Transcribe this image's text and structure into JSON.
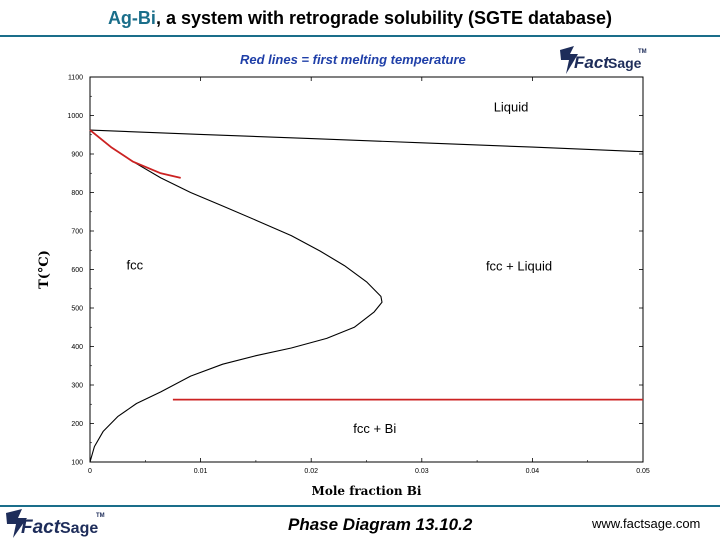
{
  "header": {
    "title_highlight": "Ag-Bi",
    "title_rest": ", a system with retrograde solubility (SGTE database)"
  },
  "subtitle": "Red lines = first melting temperature",
  "logo": {
    "text_a": "Fact",
    "text_b": "Sage",
    "tm": "TM"
  },
  "footer": {
    "center": "Phase Diagram  13.10.2",
    "right": "www.factsage.com"
  },
  "colors": {
    "accent": "#1a6e8a",
    "subtitle": "#1f3fa8",
    "first_melting_line": "#cc2222",
    "phase_line": "#000000"
  },
  "chart_data": {
    "type": "line",
    "xlabel": "Mole fraction Bi",
    "ylabel": "T(°C)",
    "xlim": [
      0,
      0.05
    ],
    "ylim": [
      100,
      1100
    ],
    "x_ticks": [
      0,
      0.01,
      0.02,
      0.03,
      0.04,
      0.05
    ],
    "x_tick_labels": [
      "0",
      "0.01",
      "0.02",
      "0.03",
      "0.04",
      "0.05"
    ],
    "y_ticks": [
      100,
      200,
      300,
      400,
      500,
      600,
      700,
      800,
      900,
      1000,
      1100
    ],
    "y_tick_labels": [
      "100",
      "200",
      "300",
      "400",
      "500",
      "600",
      "700",
      "800",
      "900",
      "1000",
      "1100"
    ],
    "grid": false,
    "regions": [
      {
        "label": "Liquid",
        "x": 0.0365,
        "y": 1010
      },
      {
        "label": "fcc",
        "x": 0.0033,
        "y": 600
      },
      {
        "label": "fcc + Liquid",
        "x": 0.0358,
        "y": 597
      },
      {
        "label": "fcc + Bi",
        "x": 0.0238,
        "y": 175
      }
    ],
    "series": [
      {
        "color": "#000000",
        "x": [
          0,
          0.01,
          0.02,
          0.03,
          0.04,
          0.05
        ],
        "y": [
          962,
          951,
          940,
          929,
          918,
          906
        ]
      },
      {
        "color": "#000000",
        "x": [
          0,
          0.0019,
          0.0039,
          0.0064,
          0.0091,
          0.012,
          0.015,
          0.0182,
          0.0208,
          0.023,
          0.025,
          0.0263,
          0.0264,
          0.0257,
          0.0239,
          0.0214,
          0.0182,
          0.015,
          0.012,
          0.0091,
          0.0064,
          0.0042,
          0.0025,
          0.0012,
          0.0004,
          0
        ],
        "y": [
          962,
          918,
          880,
          838,
          800,
          765,
          728,
          688,
          648,
          610,
          568,
          530,
          515,
          490,
          450,
          421,
          396,
          376,
          354,
          323,
          282,
          252,
          218,
          180,
          140,
          100
        ]
      },
      {
        "color": "#cc2222",
        "x": [
          0,
          0.0019,
          0.0039,
          0.0064,
          0.0082
        ],
        "y": [
          962,
          918,
          880,
          850,
          838
        ]
      },
      {
        "color": "#cc2222",
        "x": [
          0.0075,
          0.05
        ],
        "y": [
          262,
          262
        ]
      }
    ]
  }
}
